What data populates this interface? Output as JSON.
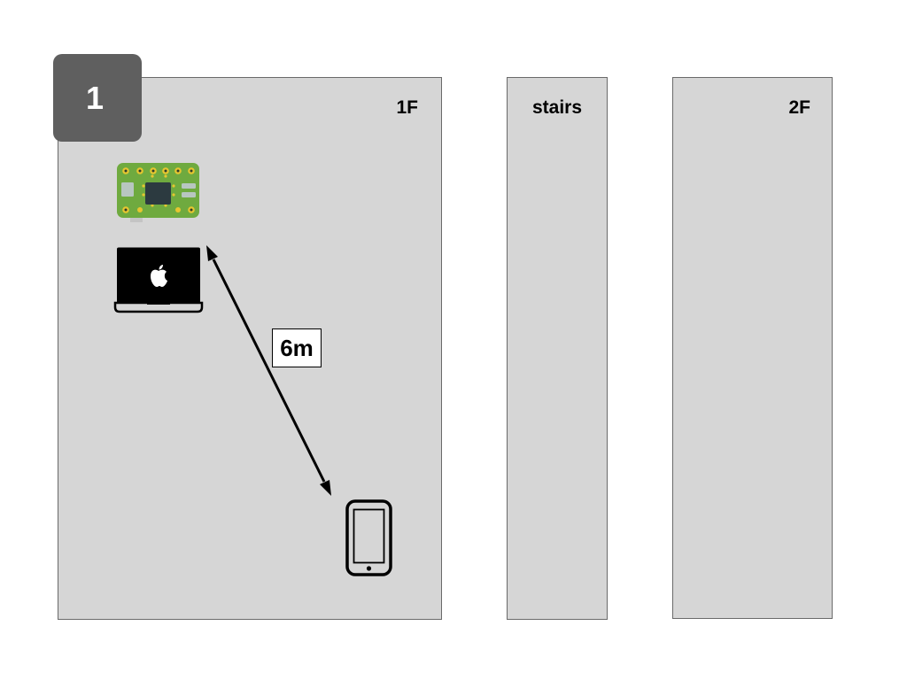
{
  "step_badge": "1",
  "rooms": [
    {
      "label": "1F"
    },
    {
      "label": "stairs"
    },
    {
      "label": "2F"
    }
  ],
  "distance_label": "6m",
  "devices": {
    "board": "circuit-board-icon",
    "laptop": "laptop-icon",
    "phone": "smartphone-icon"
  },
  "colors": {
    "room_fill": "#d6d6d6",
    "badge_fill": "#5f5f5f",
    "board_green": "#6faa3f",
    "arrow": "#000000"
  }
}
